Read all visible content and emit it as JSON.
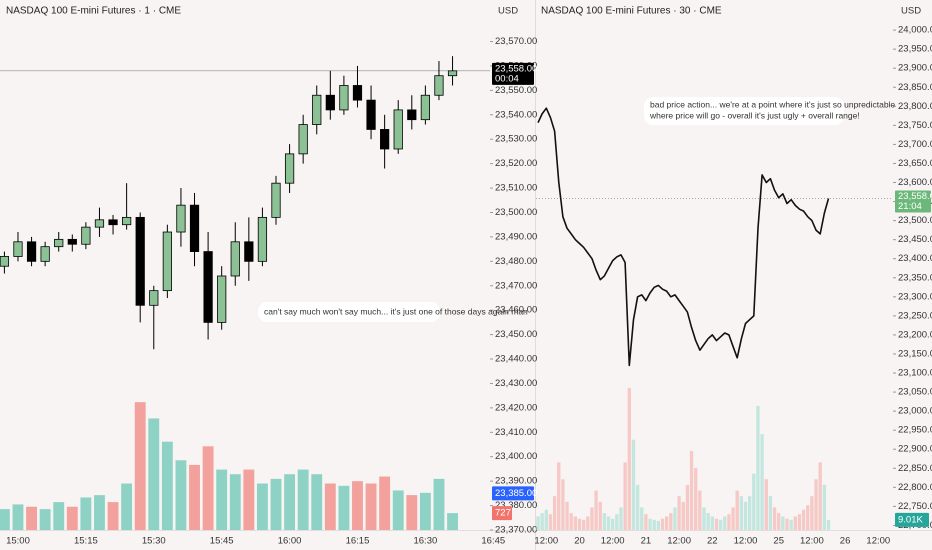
{
  "chart_data": [
    {
      "type": "candlestick",
      "title": "NASDAQ 100 E-mini Futures · 1 · CME",
      "currency": "USD",
      "annotation": "can't say much won't say much... it's just one of those days again man",
      "categories": [
        null,
        "15:00",
        null,
        null,
        null,
        null,
        "15:15",
        null,
        null,
        null,
        null,
        "15:30",
        null,
        null,
        null,
        null,
        "15:45",
        null,
        null,
        null,
        null,
        "16:00",
        null,
        null,
        null,
        null,
        "16:15",
        null,
        null,
        null,
        null,
        "16:30",
        null,
        null,
        null,
        null,
        "16:45"
      ],
      "open": [
        23478,
        23482,
        23488,
        23480,
        23486,
        23489,
        23487,
        23494,
        23497,
        23495,
        23498,
        23462,
        23468,
        23492,
        23503,
        23484,
        23455,
        23474,
        23488,
        23480,
        23498,
        23512,
        23524,
        23536,
        23548,
        23542,
        23552,
        23546,
        23534,
        23526,
        23542,
        23538,
        23548,
        23556,
        null,
        null,
        null
      ],
      "high": [
        23484,
        23492,
        23490,
        23488,
        23492,
        23491,
        23496,
        23502,
        23499,
        23512,
        23500,
        23470,
        23495,
        23510,
        23508,
        23492,
        23478,
        23496,
        23498,
        23502,
        23515,
        23528,
        23540,
        23552,
        23558,
        23556,
        23560,
        23552,
        23540,
        23546,
        23548,
        23552,
        23562,
        23564,
        null,
        null,
        null
      ],
      "low": [
        23475,
        23480,
        23478,
        23478,
        23484,
        23484,
        23485,
        23490,
        23491,
        23493,
        23455,
        23444,
        23465,
        23486,
        23478,
        23448,
        23452,
        23470,
        23472,
        23478,
        23495,
        23508,
        23520,
        23532,
        23538,
        23540,
        23543,
        23530,
        23518,
        23524,
        23534,
        23536,
        23546,
        23552,
        null,
        null,
        null
      ],
      "close": [
        23482,
        23488,
        23480,
        23486,
        23489,
        23487,
        23494,
        23497,
        23495,
        23498,
        23462,
        23468,
        23492,
        23503,
        23484,
        23455,
        23474,
        23488,
        23480,
        23498,
        23512,
        23524,
        23536,
        23548,
        23542,
        23552,
        23546,
        23534,
        23526,
        23542,
        23538,
        23548,
        23556,
        23558,
        null,
        null,
        null
      ],
      "volume": [
        900,
        1100,
        1000,
        900,
        1200,
        1000,
        1400,
        1500,
        1200,
        2000,
        5500,
        4800,
        3800,
        3000,
        2800,
        3600,
        2600,
        2400,
        2600,
        2000,
        2200,
        2400,
        2600,
        2400,
        2000,
        1900,
        2100,
        2000,
        2300,
        1700,
        1500,
        1600,
        2200,
        727,
        null,
        null,
        null
      ],
      "up_color": "#8cc196",
      "down_color": "#000000",
      "volume_up_color": "#8ed2c6",
      "volume_down_color": "#f2a19d",
      "ylim": [
        23370,
        23587
      ],
      "y2lim": [
        0,
        22800
      ],
      "yticks": [
        {
          "value": 23370,
          "label": "23,370.00"
        },
        {
          "value": 23380,
          "label": "23,380.00"
        },
        {
          "value": 23390,
          "label": "23,390.00"
        },
        {
          "value": 23400,
          "label": "23,400.00"
        },
        {
          "value": 23410,
          "label": "23,410.00"
        },
        {
          "value": 23420,
          "label": "23,420.00"
        },
        {
          "value": 23430,
          "label": "23,430.00"
        },
        {
          "value": 23440,
          "label": "23,440.00"
        },
        {
          "value": 23450,
          "label": "23,450.00"
        },
        {
          "value": 23460,
          "label": "23,460.00"
        },
        {
          "value": 23470,
          "label": "23,470.00"
        },
        {
          "value": 23480,
          "label": "23,480.00"
        },
        {
          "value": 23490,
          "label": "23,490.00"
        },
        {
          "value": 23500,
          "label": "23,500.00"
        },
        {
          "value": 23510,
          "label": "23,510.00"
        },
        {
          "value": 23520,
          "label": "23,520.00"
        },
        {
          "value": 23530,
          "label": "23,530.00"
        },
        {
          "value": 23540,
          "label": "23,540.00"
        },
        {
          "value": 23550,
          "label": "23,550.00"
        },
        {
          "value": 23560,
          "label": "23,560.00"
        },
        {
          "value": 23570,
          "label": "23,570.00"
        }
      ],
      "last_price": {
        "value": 23558,
        "label": "23,558.00"
      },
      "countdown": "00:04",
      "price_tag_color": "#000000",
      "marker": {
        "value": 23385,
        "label": "23,385.00"
      },
      "marker_color": "#2962ff",
      "volume_tag": 727,
      "volume_tag_color": "#f0736c"
    },
    {
      "type": "line",
      "title": "NASDAQ 100 E-mini Futures · 30 · CME",
      "currency": "USD",
      "annotation": [
        "bad price action... we're at a point where it's just so unpredictable",
        "where price will go - overall it's just ugly + overall range!"
      ],
      "categories": [
        null,
        null,
        "12:00",
        null,
        null,
        null,
        null,
        null,
        null,
        null,
        "20",
        null,
        null,
        null,
        null,
        null,
        null,
        null,
        "12:00",
        null,
        null,
        null,
        null,
        null,
        null,
        null,
        "21",
        null,
        null,
        null,
        null,
        null,
        null,
        null,
        "12:00",
        null,
        null,
        null,
        null,
        null,
        null,
        null,
        "22",
        null,
        null,
        null,
        null,
        null,
        null,
        null,
        "12:00",
        null,
        null,
        null,
        null,
        null,
        null,
        null,
        "25",
        null,
        null,
        null,
        null,
        null,
        null,
        null,
        "12:00",
        null,
        null,
        null,
        null,
        null,
        null,
        null,
        "26",
        null,
        null,
        null,
        null,
        null,
        null,
        null,
        "12:00",
        null,
        null
      ],
      "values": [
        23757,
        23780,
        23795,
        23770,
        23735,
        23600,
        23510,
        23480,
        23465,
        23450,
        23440,
        23430,
        23415,
        23400,
        23370,
        23345,
        23355,
        23375,
        23395,
        23405,
        23410,
        23390,
        23120,
        23240,
        23300,
        23305,
        23290,
        23310,
        23325,
        23330,
        23320,
        23315,
        23300,
        23305,
        23290,
        23275,
        23260,
        23220,
        23185,
        23160,
        23175,
        23190,
        23200,
        23185,
        23195,
        23205,
        23200,
        23170,
        23140,
        23190,
        23230,
        23240,
        23250,
        23480,
        23620,
        23600,
        23610,
        23580,
        23560,
        23570,
        23545,
        23555,
        23540,
        23530,
        23525,
        23510,
        23500,
        23475,
        23465,
        23520,
        23558,
        null,
        null,
        null,
        null,
        null,
        null,
        null,
        null,
        null,
        null,
        null,
        null,
        null,
        null
      ],
      "volume": [
        12000,
        15000,
        18000,
        14000,
        30000,
        60000,
        45000,
        25000,
        15000,
        12000,
        10000,
        9000,
        12000,
        20000,
        35000,
        25000,
        15000,
        12000,
        10000,
        14000,
        20000,
        60000,
        126000,
        80000,
        40000,
        20000,
        14000,
        10000,
        9000,
        8000,
        10000,
        12000,
        15000,
        20000,
        30000,
        25000,
        40000,
        70000,
        55000,
        35000,
        20000,
        15000,
        12000,
        10000,
        9000,
        12000,
        14000,
        20000,
        35000,
        30000,
        25000,
        30000,
        50000,
        110000,
        85000,
        45000,
        30000,
        20000,
        15000,
        12000,
        10000,
        9000,
        12000,
        14000,
        18000,
        22000,
        30000,
        45000,
        60000,
        40000,
        9010,
        null,
        null,
        null,
        null,
        null,
        null,
        null,
        null,
        null,
        null,
        null,
        null,
        null,
        null
      ],
      "line_color": "#111111",
      "volume_up_color": "#c3e6df",
      "volume_down_color": "#f6c9c6",
      "ylim": [
        22688,
        24079
      ],
      "y2lim": [
        0,
        470000
      ],
      "yticks": [
        {
          "value": 22700,
          "label": "22,700.00"
        },
        {
          "value": 22750,
          "label": "22,750.00"
        },
        {
          "value": 22800,
          "label": "22,800.00"
        },
        {
          "value": 22850,
          "label": "22,850.00"
        },
        {
          "value": 22900,
          "label": "22,900.00"
        },
        {
          "value": 22950,
          "label": "22,950.00"
        },
        {
          "value": 23000,
          "label": "23,000.00"
        },
        {
          "value": 23050,
          "label": "23,050.00"
        },
        {
          "value": 23100,
          "label": "23,100.00"
        },
        {
          "value": 23150,
          "label": "23,150.00"
        },
        {
          "value": 23200,
          "label": "23,200.00"
        },
        {
          "value": 23250,
          "label": "23,250.00"
        },
        {
          "value": 23300,
          "label": "23,300.00"
        },
        {
          "value": 23350,
          "label": "23,350.00"
        },
        {
          "value": 23400,
          "label": "23,400.00"
        },
        {
          "value": 23450,
          "label": "23,450.00"
        },
        {
          "value": 23500,
          "label": "23,500.00"
        },
        {
          "value": 23550,
          "label": "23,550.00"
        },
        {
          "value": 23600,
          "label": "23,600.00"
        },
        {
          "value": 23650,
          "label": "23,650.00"
        },
        {
          "value": 23700,
          "label": "23,700.00"
        },
        {
          "value": 23750,
          "label": "23,750.00"
        },
        {
          "value": 23800,
          "label": "23,800.00"
        },
        {
          "value": 23850,
          "label": "23,850.00"
        },
        {
          "value": 23900,
          "label": "23,900.00"
        },
        {
          "value": 23950,
          "label": "23,950.00"
        },
        {
          "value": 24000,
          "label": "24,000.00"
        }
      ],
      "last_price": {
        "value": 23558,
        "label": "23,558.00"
      },
      "countdown": "21:04",
      "price_tag_color": "#6cb77a",
      "volume_tag": {
        "value": 9010,
        "label": "9.01K"
      },
      "volume_tag_color": "#26a69a"
    }
  ]
}
